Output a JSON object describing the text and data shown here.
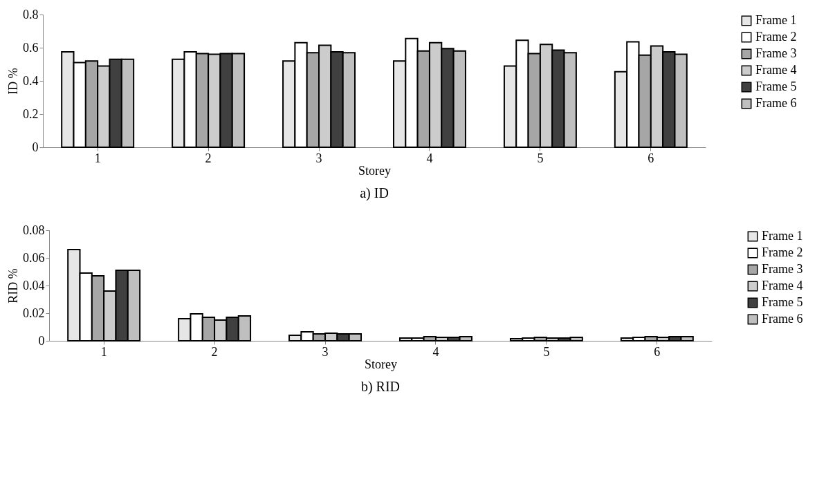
{
  "chart_data": [
    {
      "type": "bar",
      "title": "a)   ID",
      "xlabel": "Storey",
      "ylabel": "ID %",
      "categories": [
        "1",
        "2",
        "3",
        "4",
        "5",
        "6"
      ],
      "ylim": [
        0,
        0.8
      ],
      "yticks": [
        0,
        0.2,
        0.4,
        0.6,
        0.8
      ],
      "grid": false,
      "legend": "right",
      "series": [
        {
          "name": "Frame 1",
          "color": "#e6e6e6",
          "values": [
            0.575,
            0.53,
            0.52,
            0.52,
            0.49,
            0.455
          ]
        },
        {
          "name": "Frame 2",
          "color": "#ffffff",
          "values": [
            0.51,
            0.575,
            0.63,
            0.655,
            0.645,
            0.635
          ]
        },
        {
          "name": "Frame 3",
          "color": "#a6a6a6",
          "values": [
            0.52,
            0.565,
            0.57,
            0.58,
            0.565,
            0.555
          ]
        },
        {
          "name": "Frame 4",
          "color": "#cccccc",
          "values": [
            0.49,
            0.56,
            0.615,
            0.63,
            0.62,
            0.61
          ]
        },
        {
          "name": "Frame 5",
          "color": "#404040",
          "values": [
            0.53,
            0.565,
            0.575,
            0.595,
            0.585,
            0.575
          ]
        },
        {
          "name": "Frame 6",
          "color": "#bfbfbf",
          "values": [
            0.53,
            0.565,
            0.57,
            0.58,
            0.57,
            0.56
          ]
        }
      ]
    },
    {
      "type": "bar",
      "title": "b)   RID",
      "xlabel": "Storey",
      "ylabel": "RID %",
      "categories": [
        "1",
        "2",
        "3",
        "4",
        "5",
        "6"
      ],
      "ylim": [
        0,
        0.08
      ],
      "yticks": [
        0,
        0.02,
        0.04,
        0.06,
        0.08
      ],
      "grid": false,
      "legend": "right",
      "series": [
        {
          "name": "Frame 1",
          "color": "#e6e6e6",
          "values": [
            0.066,
            0.016,
            0.004,
            0.002,
            0.0015,
            0.002
          ]
        },
        {
          "name": "Frame 2",
          "color": "#ffffff",
          "values": [
            0.049,
            0.0195,
            0.0065,
            0.002,
            0.002,
            0.0025
          ]
        },
        {
          "name": "Frame 3",
          "color": "#a6a6a6",
          "values": [
            0.047,
            0.017,
            0.005,
            0.003,
            0.0025,
            0.003
          ]
        },
        {
          "name": "Frame 4",
          "color": "#cccccc",
          "values": [
            0.036,
            0.015,
            0.0055,
            0.0025,
            0.002,
            0.0025
          ]
        },
        {
          "name": "Frame 5",
          "color": "#404040",
          "values": [
            0.051,
            0.017,
            0.005,
            0.0025,
            0.002,
            0.003
          ]
        },
        {
          "name": "Frame 6",
          "color": "#bfbfbf",
          "values": [
            0.051,
            0.018,
            0.005,
            0.003,
            0.0025,
            0.003
          ]
        }
      ]
    }
  ]
}
